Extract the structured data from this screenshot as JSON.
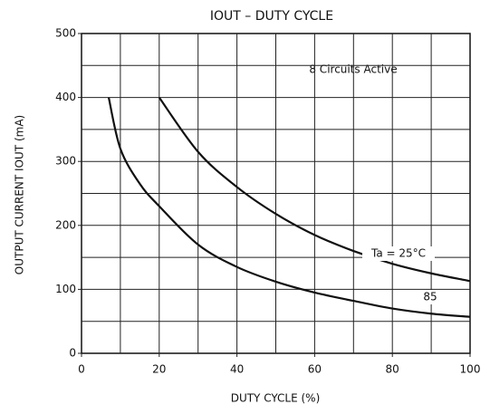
{
  "chart_data": {
    "type": "line",
    "title": "IOUT – DUTY CYCLE",
    "x_label": "DUTY CYCLE   (%)",
    "y_label": "OUTPUT CURRENT  IOUT  (mA)",
    "annotation": "8 Circuits Active",
    "series": [
      {
        "name": "Ta = 25°C",
        "color": "#111111",
        "x": [
          20,
          30,
          40,
          50,
          60,
          70,
          80,
          90,
          100
        ],
        "values": [
          400,
          315,
          260,
          218,
          185,
          160,
          140,
          125,
          113
        ]
      },
      {
        "name": "85",
        "color": "#111111",
        "x": [
          7,
          10,
          15,
          20,
          30,
          40,
          50,
          60,
          70,
          80,
          90,
          100
        ],
        "values": [
          400,
          320,
          265,
          230,
          170,
          135,
          112,
          95,
          82,
          70,
          62,
          57
        ]
      }
    ],
    "xlim": [
      0,
      100
    ],
    "xticks": [
      0,
      20,
      40,
      60,
      80,
      100
    ],
    "ylim": [
      0,
      500
    ],
    "yticks": [
      0,
      100,
      200,
      300,
      400,
      500
    ],
    "xgrid": [
      10,
      20,
      30,
      40,
      50,
      60,
      70,
      80,
      90
    ],
    "ygrid": [
      50,
      100,
      150,
      200,
      250,
      300,
      350,
      400,
      450
    ],
    "grid": true
  }
}
